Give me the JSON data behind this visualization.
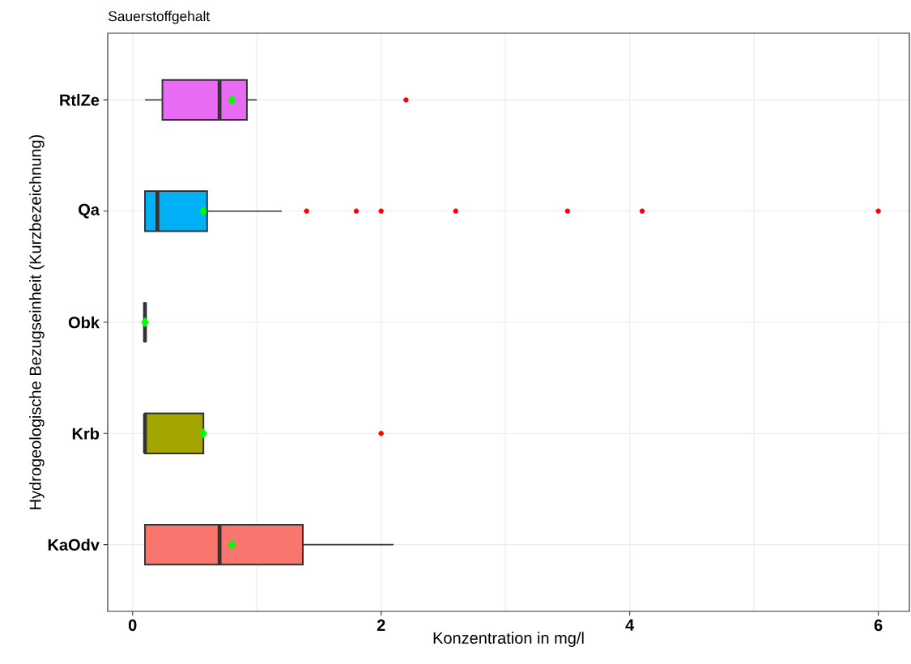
{
  "chart_data": {
    "type": "box",
    "orientation": "horizontal",
    "title": "Sauerstoffgehalt",
    "xlabel": "Konzentration in mg/l",
    "ylabel": "Hydrogeologische Bezugseinheit (Kurzbezeichnung)",
    "categories": [
      "RtlZe",
      "Qa",
      "Obk",
      "Krb",
      "KaOdv"
    ],
    "colors": [
      "#e76bf3",
      "#00b0f6",
      "#333333",
      "#a3a500",
      "#f8766d"
    ],
    "boxes": [
      {
        "low": 0.1,
        "q1": 0.24,
        "median": 0.7,
        "q3": 0.92,
        "high": 1.0,
        "mean": 0.8,
        "outliers": [
          2.2
        ]
      },
      {
        "low": 0.1,
        "q1": 0.1,
        "median": 0.2,
        "q3": 0.6,
        "high": 1.2,
        "mean": 0.57,
        "outliers": [
          1.4,
          1.8,
          2.0,
          2.6,
          3.5,
          4.1,
          6.0
        ]
      },
      {
        "low": 0.1,
        "q1": 0.1,
        "median": 0.1,
        "q3": 0.1,
        "high": 0.1,
        "mean": 0.1
      },
      {
        "low": 0.1,
        "q1": 0.1,
        "median": 0.1,
        "q3": 0.57,
        "high": 0.57,
        "mean": 0.57,
        "outliers": [
          2.0
        ]
      },
      {
        "low": 0.1,
        "q1": 0.1,
        "median": 0.7,
        "q3": 1.37,
        "high": 2.1,
        "mean": 0.8
      }
    ],
    "xlim": [
      -0.2,
      6.25
    ],
    "xticks": [
      0,
      2,
      4,
      6
    ],
    "grid": true
  }
}
